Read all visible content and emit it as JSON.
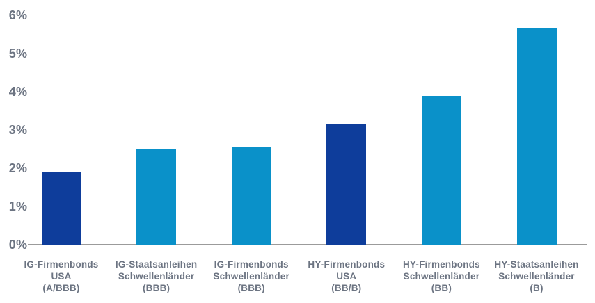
{
  "chart_data": {
    "type": "bar",
    "title": "",
    "categories": [
      "IG-Firmenbonds\nUSA\n(A/BBB)",
      "IG-Staatsanleihen\nSchwellenländer\n(BBB)",
      "IG-Firmenbonds\nSchwellenländer\n(BBB)",
      "HY-Firmenbonds\nUSA\n(BB/B)",
      "HY-Firmenbonds\nSchwellenländer\n(BB)",
      "HY-Staatsanleihen\nSchwellenländer\n(B)"
    ],
    "values": [
      1.9,
      2.5,
      2.55,
      3.15,
      3.9,
      5.65
    ],
    "unit": "%",
    "bar_colors": [
      "#0e3d9b",
      "#0a91c9",
      "#0a91c9",
      "#0e3d9b",
      "#0a91c9",
      "#0a91c9"
    ],
    "yticks": [
      "0%",
      "1%",
      "2%",
      "3%",
      "4%",
      "5%",
      "6%"
    ],
    "ylim": [
      0,
      6
    ],
    "xlabel": "",
    "ylabel": "",
    "grid": false,
    "legend": false
  },
  "colors": {
    "dark_blue": "#0e3d9b",
    "light_blue": "#0a91c9",
    "axis_line": "#9b9b9b",
    "label_text": "#6c7482",
    "background": "#ffffff"
  }
}
